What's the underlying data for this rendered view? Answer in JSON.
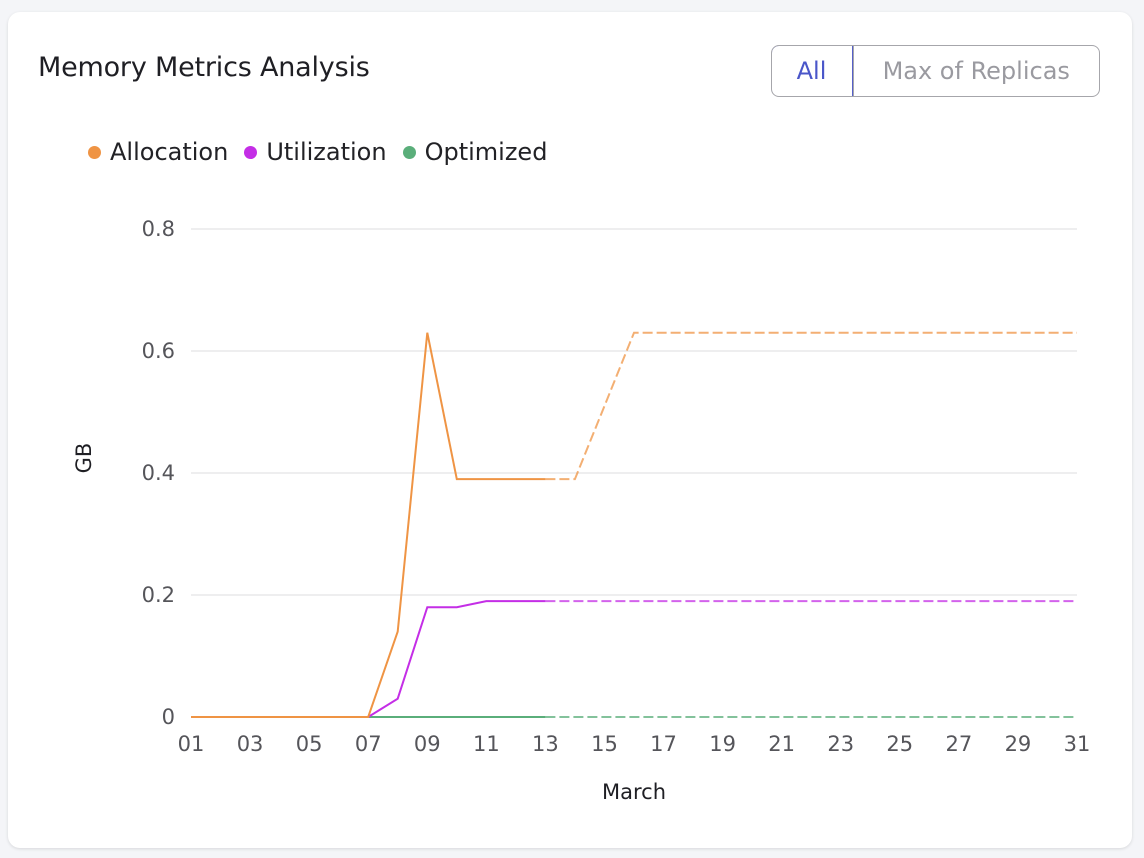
{
  "card": {
    "title": "Memory Metrics Analysis",
    "toggle": {
      "options": [
        "All",
        "Max of Replicas"
      ],
      "selected": "All"
    }
  },
  "chart_data": {
    "type": "line",
    "xlabel": "March",
    "ylabel": "GB",
    "ylim": [
      0,
      0.8
    ],
    "yticks": [
      "0",
      "0.2",
      "0.4",
      "0.6",
      "0.8"
    ],
    "xticks": [
      "01",
      "03",
      "05",
      "07",
      "09",
      "11",
      "13",
      "15",
      "17",
      "19",
      "21",
      "23",
      "25",
      "27",
      "29",
      "31"
    ],
    "grid": true,
    "legend_position": "top-left",
    "x": [
      1,
      2,
      3,
      4,
      5,
      6,
      7,
      8,
      9,
      10,
      11,
      12,
      13,
      14,
      15,
      16,
      17,
      18,
      19,
      20,
      21,
      22,
      23,
      24,
      25,
      26,
      27,
      28,
      29,
      30,
      31
    ],
    "series": [
      {
        "name": "Allocation",
        "color": "#ef9444",
        "values": [
          0,
          0,
          0,
          0,
          0,
          0,
          0,
          0.14,
          0.63,
          0.39,
          0.39,
          0.39,
          0.39,
          0.39,
          0.51,
          0.63,
          0.63,
          0.63,
          0.63,
          0.63,
          0.63,
          0.63,
          0.63,
          0.63,
          0.63,
          0.63,
          0.63,
          0.63,
          0.63,
          0.63,
          0.63
        ],
        "solid_until": 13
      },
      {
        "name": "Utilization",
        "color": "#c42ee6",
        "values": [
          0,
          0,
          0,
          0,
          0,
          0,
          0,
          0.03,
          0.18,
          0.18,
          0.19,
          0.19,
          0.19,
          0.19,
          0.19,
          0.19,
          0.19,
          0.19,
          0.19,
          0.19,
          0.19,
          0.19,
          0.19,
          0.19,
          0.19,
          0.19,
          0.19,
          0.19,
          0.19,
          0.19,
          0.19
        ],
        "solid_until": 13
      },
      {
        "name": "Optimized",
        "color": "#5aae7a",
        "values": [
          0,
          0,
          0,
          0,
          0,
          0,
          0,
          0,
          0,
          0,
          0,
          0,
          0,
          0,
          0,
          0,
          0,
          0,
          0,
          0,
          0,
          0,
          0,
          0,
          0,
          0,
          0,
          0,
          0,
          0,
          0
        ],
        "solid_until": 13
      }
    ]
  }
}
